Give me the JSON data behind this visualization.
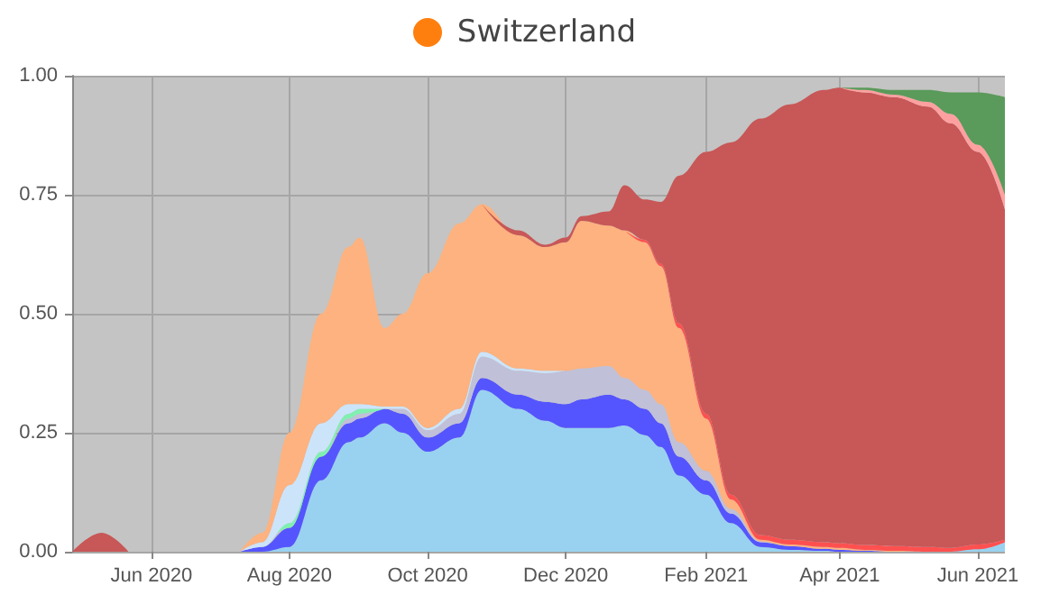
{
  "chart_data": {
    "type": "area",
    "title": "Switzerland",
    "stacked": true,
    "grid": true,
    "legend": false,
    "marker": "none",
    "x": [
      "2020-04-27",
      "2020-05-10",
      "2020-05-22",
      "2020-07-10",
      "2020-07-20",
      "2020-08-01",
      "2020-08-15",
      "2020-08-27",
      "2020-09-01",
      "2020-09-12",
      "2020-09-20",
      "2020-10-01",
      "2020-10-15",
      "2020-10-25",
      "2020-11-10",
      "2020-11-22",
      "2020-12-01",
      "2020-12-08",
      "2020-12-20",
      "2020-12-27",
      "2021-01-05",
      "2021-01-12",
      "2021-01-20",
      "2021-02-01",
      "2021-02-12",
      "2021-02-25",
      "2021-03-10",
      "2021-03-25",
      "2021-04-01",
      "2021-04-12",
      "2021-04-25",
      "2021-05-10",
      "2021-05-20",
      "2021-06-01",
      "2021-06-13"
    ],
    "xlim": [
      "2020-04-27",
      "2021-06-13"
    ],
    "xticks": [
      {
        "value": "2020-06-01",
        "label": "Jun 2020"
      },
      {
        "value": "2020-08-01",
        "label": "Aug 2020"
      },
      {
        "value": "2020-10-01",
        "label": "Oct 2020"
      },
      {
        "value": "2020-12-01",
        "label": "Dec 2020"
      },
      {
        "value": "2021-02-01",
        "label": "Feb 2021"
      },
      {
        "value": "2021-04-01",
        "label": "Apr 2021"
      },
      {
        "value": "2021-06-01",
        "label": "Jun 2021"
      }
    ],
    "ylim": [
      0,
      1
    ],
    "yticks": [
      {
        "value": 0,
        "label": "0.00"
      },
      {
        "value": 0.25,
        "label": "0.25"
      },
      {
        "value": 0.5,
        "label": "0.50"
      },
      {
        "value": 0.75,
        "label": "0.75"
      },
      {
        "value": 1,
        "label": "1.00"
      }
    ],
    "series": [
      {
        "color": "#98d2f0",
        "values": [
          null,
          null,
          null,
          null,
          0,
          0.01,
          0.15,
          0.23,
          0.24,
          0.27,
          0.25,
          0.21,
          0.24,
          0.34,
          0.3,
          0.275,
          0.26,
          0.26,
          0.26,
          0.265,
          0.245,
          0.22,
          0.16,
          0.12,
          0.06,
          0.01,
          0.004,
          0.002,
          0,
          null,
          null,
          null,
          0,
          0.005,
          0.02
        ]
      },
      {
        "color": "#5555ff",
        "values": [
          null,
          null,
          null,
          0,
          0.01,
          0.04,
          0.05,
          0.04,
          0.04,
          0.03,
          0.04,
          0.03,
          0.03,
          0.025,
          0.03,
          0.04,
          0.05,
          0.06,
          0.07,
          0.055,
          0.055,
          0.05,
          0.04,
          0.03,
          0.02,
          0.01,
          0.008,
          0.004,
          0.004,
          0.002,
          0,
          null,
          null,
          null,
          null
        ]
      },
      {
        "color": "#c0c0d8",
        "values": [
          null,
          null,
          null,
          null,
          null,
          null,
          0,
          0.01,
          0.01,
          0,
          0.01,
          0.015,
          0.02,
          0.045,
          0.05,
          0.06,
          0.07,
          0.065,
          0.06,
          0.045,
          0.04,
          0.04,
          0.03,
          0.02,
          0.01,
          0.002,
          0,
          null,
          null,
          null,
          null,
          null,
          null,
          null,
          null
        ]
      },
      {
        "color": "#80f0b0",
        "values": [
          null,
          null,
          null,
          null,
          0,
          0.01,
          0.01,
          0.01,
          0.01,
          0,
          null,
          null,
          null,
          null,
          null,
          null,
          null,
          null,
          null,
          null,
          null,
          null,
          null,
          null,
          null,
          null,
          null,
          null,
          null,
          null,
          null,
          null,
          null,
          null,
          null
        ]
      },
      {
        "color": "#cce4fa",
        "values": [
          null,
          null,
          null,
          0,
          0.01,
          0.08,
          0.06,
          0.02,
          0.01,
          0.005,
          0.005,
          0.005,
          0.01,
          0.01,
          0.005,
          0.005,
          0,
          null,
          null,
          null,
          null,
          null,
          null,
          null,
          null,
          null,
          null,
          null,
          null,
          null,
          null,
          null,
          null,
          null,
          null
        ]
      },
      {
        "color": "#fdb27f",
        "values": [
          null,
          null,
          null,
          0,
          0.02,
          0.11,
          0.23,
          0.33,
          0.35,
          0.165,
          0.195,
          0.325,
          0.39,
          0.31,
          0.28,
          0.26,
          0.27,
          0.31,
          0.295,
          0.31,
          0.31,
          0.29,
          0.24,
          0.11,
          0.02,
          0.003,
          0.003,
          0.004,
          0.004,
          0.002,
          0.002,
          0,
          null,
          null,
          null
        ]
      },
      {
        "color": "#ff5050",
        "values": [
          null,
          null,
          null,
          null,
          null,
          null,
          null,
          null,
          null,
          null,
          null,
          null,
          null,
          null,
          null,
          null,
          null,
          null,
          null,
          0,
          0.005,
          0.005,
          0.01,
          0.01,
          0.01,
          0.01,
          0.01,
          0.01,
          0.01,
          0.01,
          0.01,
          0.01,
          0.008,
          0.01,
          0.005
        ]
      },
      {
        "color": "#c85757",
        "values": [
          0,
          0.04,
          0,
          null,
          null,
          null,
          null,
          null,
          null,
          null,
          null,
          null,
          null,
          0,
          0.01,
          0.005,
          0.01,
          0.01,
          0.03,
          0.095,
          0.085,
          0.13,
          0.31,
          0.55,
          0.74,
          0.875,
          0.915,
          0.95,
          0.957,
          0.951,
          0.943,
          0.925,
          0.892,
          0.825,
          0.695
        ]
      },
      {
        "color": "#ffa0a0",
        "values": [
          null,
          null,
          null,
          null,
          null,
          null,
          null,
          null,
          null,
          null,
          null,
          null,
          null,
          null,
          null,
          null,
          null,
          null,
          null,
          null,
          null,
          null,
          null,
          null,
          null,
          null,
          null,
          null,
          0,
          0.005,
          0.005,
          0.01,
          0.02,
          0.015,
          0.03
        ]
      },
      {
        "color": "#5a9a5a",
        "values": [
          null,
          null,
          null,
          null,
          null,
          null,
          null,
          null,
          null,
          null,
          null,
          null,
          null,
          null,
          null,
          null,
          null,
          null,
          null,
          null,
          null,
          null,
          null,
          null,
          null,
          null,
          null,
          null,
          0,
          0.005,
          0.01,
          0.025,
          0.045,
          0.11,
          0.205
        ]
      }
    ]
  }
}
